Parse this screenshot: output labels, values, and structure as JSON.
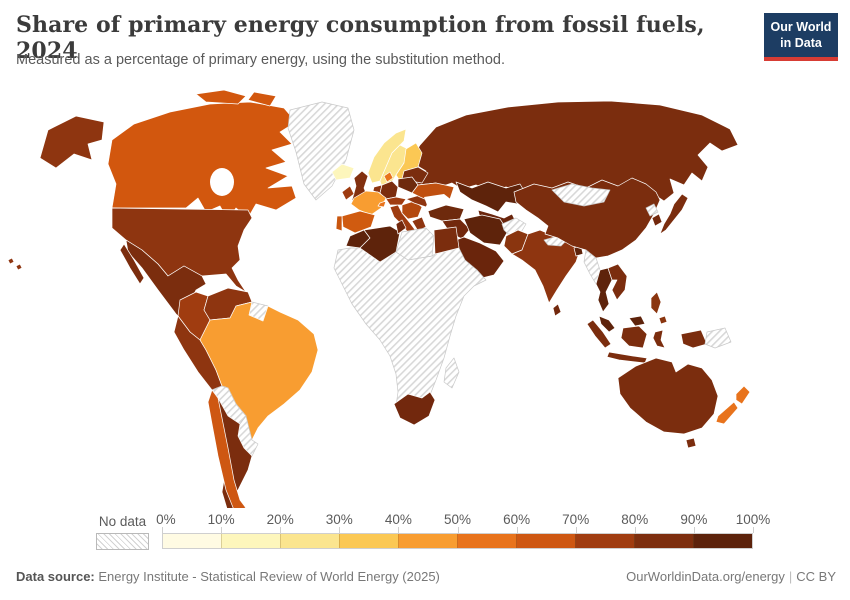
{
  "header": {
    "title": "Share of primary energy consumption from fossil fuels, 2024",
    "subtitle": "Measured as a percentage of primary energy, using the substitution method.",
    "logo_line1": "Our World",
    "logo_line2": "in Data",
    "logo_bg": "#1d3d63",
    "logo_accent": "#d73c34"
  },
  "legend": {
    "no_data_label": "No data",
    "tick_labels": [
      "0%",
      "10%",
      "20%",
      "30%",
      "40%",
      "50%",
      "60%",
      "70%",
      "80%",
      "90%",
      "100%"
    ],
    "bin_colors": [
      "#fffbe3",
      "#fdf6bc",
      "#fbe58f",
      "#fbc854",
      "#f89d31",
      "#e8731c",
      "#ce5712",
      "#a03c10",
      "#7d2e0e",
      "#5c220b"
    ]
  },
  "map": {
    "border_color": "#ffffff",
    "nodata_stroke": "#c9c9c9",
    "water_color": "#ffffff",
    "regions": {
      "usa": "#8e3510",
      "canada": "#d2570e",
      "greenland": "nodata",
      "iceland": "#fdf6bc",
      "mexico": "#7b2d0e",
      "central_america": "nodata",
      "caribbean": "nodata",
      "colombia": "#a03c10",
      "venezuela": "#8e3510",
      "guyanas": "nodata",
      "peru_ecuador": "#8e3510",
      "brazil": "#f89d31",
      "bolivia": "nodata",
      "paraguay_uruguay": "nodata",
      "chile": "#ce5712",
      "argentina": "#7b2d0e",
      "norway": "#fbe58f",
      "sweden": "#fbe58f",
      "finland": "#fbc854",
      "denmark": "#e8731c",
      "uk": "#82300f",
      "ireland": "#9e3b10",
      "france": "#f89d31",
      "spain": "#d05b10",
      "portugal": "#c9560f",
      "benelux": "#8e3510",
      "germany": "#7b2d0e",
      "poland": "#6e2a0d",
      "czech_austria": "#a03c10",
      "switzerland": "#e8731c",
      "italy": "#9e3b10",
      "balkans": "#b4490f",
      "greece": "#8e3510",
      "romania_hungary": "#8e3510",
      "ukraine": "#c05010",
      "belarus_baltics": "#7b2d0e",
      "russia": "#7b2d0e",
      "kazakhstan": "#5e230b",
      "central_asia": "#6a250c",
      "turkey": "#6e2a0d",
      "syria_iraq": "#72280d",
      "iran": "#5e230b",
      "saudi_gulf": "#6a250c",
      "afghanistan": "nodata",
      "pakistan": "#8a350f",
      "india": "#8e3510",
      "nepal": "nodata",
      "bangladesh": "#5e230b",
      "sri_lanka": "#72280d",
      "china": "#7b2d0e",
      "mongolia": "nodata",
      "north_korea": "nodata",
      "south_korea": "#72280d",
      "japan": "#7b2d0e",
      "myanmar": "nodata",
      "thailand": "#5e230b",
      "vietnam_laos": "#7b2d0e",
      "malaysia": "#5e230b",
      "indonesia": "#7b2d0e",
      "philippines": "#8a350f",
      "papua_new_guinea": "nodata",
      "australia": "#7b2d0e",
      "new_zealand": "#e8731c",
      "morocco": "#5e230b",
      "algeria": "#5e230b",
      "tunisia": "#72280d",
      "libya": "nodata",
      "egypt": "#7b2d0e",
      "africa_subsaharan": "nodata",
      "south_africa": "#72280d",
      "madagascar": "nodata"
    }
  },
  "chart_data": {
    "type": "heatmap",
    "subtype": "choropleth-world-map",
    "title": "Share of primary energy consumption from fossil fuels, 2024",
    "subtitle": "Measured as a percentage of primary energy, using the substitution method.",
    "unit": "%",
    "bins": [
      "0-10%",
      "10-20%",
      "20-30%",
      "30-40%",
      "40-50%",
      "50-60%",
      "60-70%",
      "70-80%",
      "80-90%",
      "90-100%"
    ],
    "bin_colors": [
      "#fffbe3",
      "#fdf6bc",
      "#fbe58f",
      "#fbc854",
      "#f89d31",
      "#e8731c",
      "#ce5712",
      "#a03c10",
      "#7d2e0e",
      "#5c220b"
    ],
    "legend_position": "bottom",
    "region_bins": {
      "usa": "70-80%",
      "canada": "60-70%",
      "iceland": "10-20%",
      "mexico": "80-90%",
      "colombia": "70-80%",
      "venezuela": "70-80%",
      "peru_ecuador": "70-80%",
      "brazil": "40-50%",
      "chile": "60-70%",
      "argentina": "80-90%",
      "norway": "20-30%",
      "sweden": "20-30%",
      "finland": "30-40%",
      "denmark": "50-60%",
      "uk": "70-80%",
      "ireland": "70-80%",
      "france": "40-50%",
      "spain": "60-70%",
      "portugal": "60-70%",
      "benelux": "70-80%",
      "germany": "80-90%",
      "poland": "80-90%",
      "czech_austria": "70-80%",
      "switzerland": "50-60%",
      "italy": "70-80%",
      "balkans": "70-80%",
      "greece": "70-80%",
      "romania_hungary": "70-80%",
      "ukraine": "60-70%",
      "belarus_baltics": "80-90%",
      "russia": "80-90%",
      "kazakhstan": "90-100%",
      "central_asia": "90-100%",
      "turkey": "80-90%",
      "syria_iraq": "80-90%",
      "iran": "90-100%",
      "saudi_gulf": "90-100%",
      "pakistan": "70-80%",
      "india": "70-80%",
      "bangladesh": "90-100%",
      "sri_lanka": "80-90%",
      "china": "80-90%",
      "south_korea": "80-90%",
      "japan": "80-90%",
      "thailand": "90-100%",
      "vietnam_laos": "80-90%",
      "malaysia": "90-100%",
      "indonesia": "80-90%",
      "philippines": "70-80%",
      "australia": "80-90%",
      "new_zealand": "50-60%",
      "morocco": "90-100%",
      "algeria": "90-100%",
      "tunisia": "80-90%",
      "egypt": "80-90%",
      "south_africa": "80-90%"
    },
    "no_data_regions": [
      "greenland",
      "central_america",
      "caribbean",
      "guyanas",
      "bolivia",
      "paraguay_uruguay",
      "afghanistan",
      "nepal",
      "mongolia",
      "north_korea",
      "myanmar",
      "papua_new_guinea",
      "libya",
      "africa_subsaharan",
      "madagascar"
    ]
  },
  "footer": {
    "source_label": "Data source:",
    "source_text": " Energy Institute - Statistical Review of World Energy (2025)",
    "site_text": "OurWorldinData.org/energy",
    "separator": "|",
    "license_text": "CC BY"
  }
}
